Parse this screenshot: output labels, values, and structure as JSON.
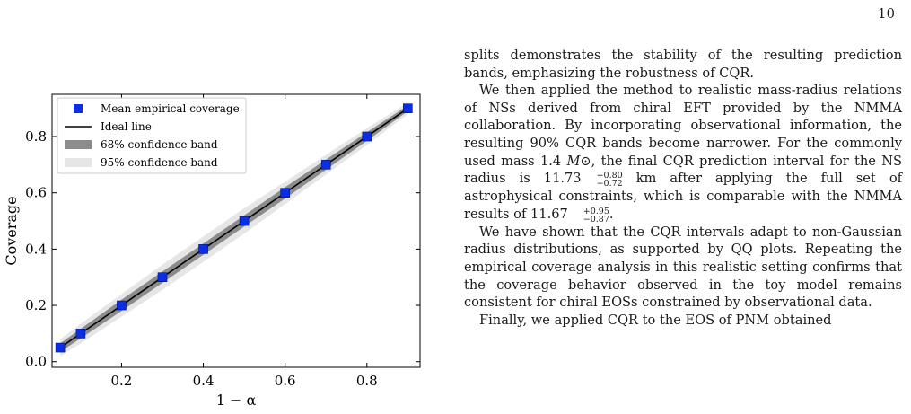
{
  "page": {
    "number": "10"
  },
  "chart_data": {
    "type": "line",
    "title": "",
    "xlabel": "1 − α",
    "ylabel": "Coverage",
    "xlim": [
      0.03,
      0.93
    ],
    "ylim": [
      -0.02,
      0.95
    ],
    "xticks": [
      0.2,
      0.4,
      0.6,
      0.8
    ],
    "xtick_labels": [
      "0.2",
      "0.4",
      "0.6",
      "0.8"
    ],
    "yticks": [
      0.0,
      0.2,
      0.4,
      0.6,
      0.8
    ],
    "ytick_labels": [
      "0.0",
      "0.2",
      "0.4",
      "0.6",
      "0.8"
    ],
    "grid": false,
    "legend_position": "top-left",
    "series": [
      {
        "name": "Mean empirical coverage",
        "kind": "markers",
        "color": "#0a2ee6",
        "x": [
          0.05,
          0.1,
          0.2,
          0.3,
          0.4,
          0.5,
          0.6,
          0.7,
          0.8,
          0.9
        ],
        "y": [
          0.05,
          0.1,
          0.2,
          0.3,
          0.4,
          0.5,
          0.6,
          0.7,
          0.8,
          0.9
        ]
      },
      {
        "name": "Ideal line",
        "kind": "line",
        "color": "#000000",
        "x": [
          0.05,
          0.9
        ],
        "y": [
          0.05,
          0.9
        ]
      },
      {
        "name": "68% confidence band",
        "kind": "band",
        "color": "#8c8c8c",
        "x": [
          0.05,
          0.1,
          0.2,
          0.3,
          0.4,
          0.5,
          0.6,
          0.7,
          0.8,
          0.9
        ],
        "lower": [
          0.035,
          0.083,
          0.18,
          0.28,
          0.38,
          0.48,
          0.58,
          0.682,
          0.785,
          0.89
        ],
        "upper": [
          0.065,
          0.117,
          0.22,
          0.32,
          0.42,
          0.52,
          0.62,
          0.718,
          0.815,
          0.91
        ]
      },
      {
        "name": "95% confidence band",
        "kind": "band",
        "color": "#e6e6e6",
        "x": [
          0.05,
          0.1,
          0.2,
          0.3,
          0.4,
          0.5,
          0.6,
          0.7,
          0.8,
          0.9
        ],
        "lower": [
          0.02,
          0.065,
          0.16,
          0.255,
          0.355,
          0.455,
          0.56,
          0.665,
          0.77,
          0.88
        ],
        "upper": [
          0.08,
          0.135,
          0.24,
          0.345,
          0.445,
          0.545,
          0.64,
          0.735,
          0.83,
          0.92
        ]
      }
    ]
  },
  "text": {
    "p1": "splits demonstrates the stability of the resulting prediction bands, emphasizing the robustness of CQR.",
    "p2_a": "We then applied the method to realistic mass-radius relations of NSs derived from chiral EFT provided by the NMMA collaboration. By incorporating observational information, the resulting 90% CQR bands become narrower. For the commonly used mass 1.4 ",
    "p2_mass": "M⊙",
    "p2_b": ", the final CQR prediction interval for the NS radius is ",
    "p2_r1": "11.73",
    "p2_r1_sup": "+0.80",
    "p2_r1_sub": "−0.72",
    "p2_c": " km after applying the full set of astrophysical constraints, which is comparable with the NMMA results of ",
    "p2_r2": "11.67",
    "p2_r2_sup": "+0.95",
    "p2_r2_sub": "−0.87",
    "p2_d": ".",
    "p3": "We have shown that the CQR intervals adapt to non-Gaussian radius distributions, as supported by QQ plots. Repeating the empirical coverage analysis in this realistic setting confirms that the coverage behavior observed in the toy model remains consistent for chiral EOSs constrained by observational data.",
    "p4": "Finally, we applied CQR to the EOS of PNM obtained"
  }
}
